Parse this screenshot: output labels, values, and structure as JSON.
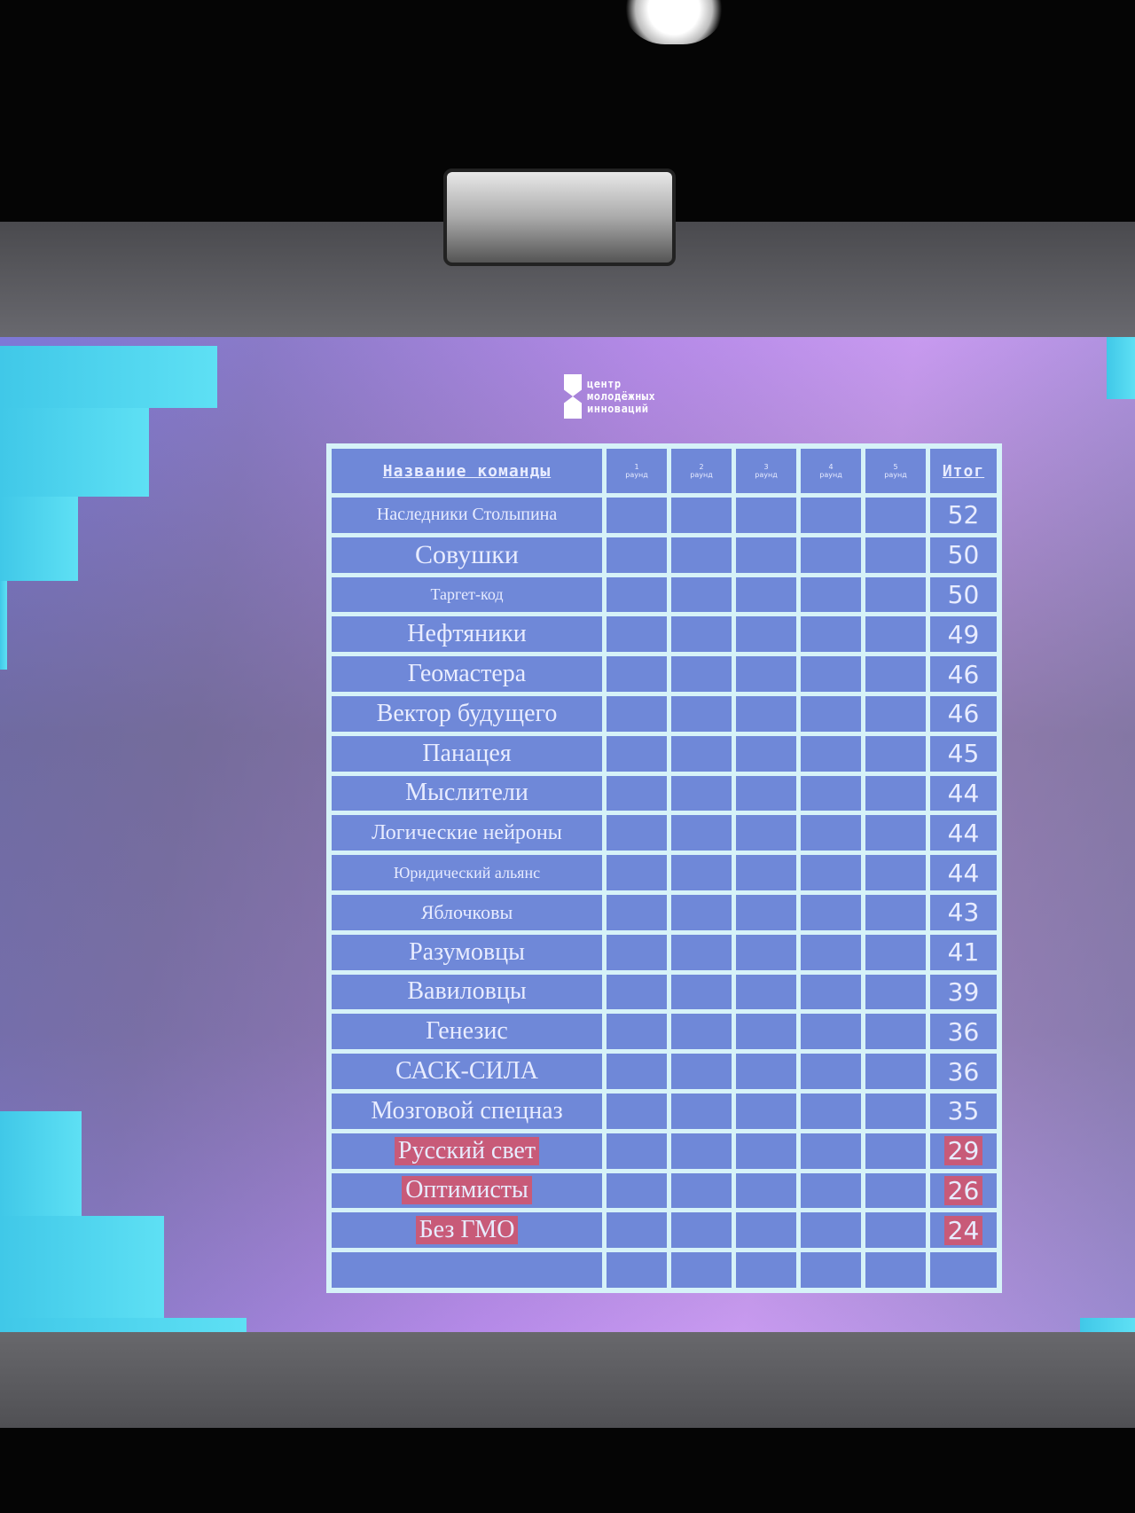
{
  "logo": {
    "lines": [
      "центр",
      "молодёжных",
      "инноваций"
    ]
  },
  "table": {
    "headers": {
      "name": "Название команды",
      "rounds": [
        {
          "n": "1",
          "label": "раунд"
        },
        {
          "n": "2",
          "label": "раунд"
        },
        {
          "n": "3",
          "label": "раунд"
        },
        {
          "n": "4",
          "label": "раунд"
        },
        {
          "n": "5",
          "label": "раунд"
        }
      ],
      "total": "Итог"
    },
    "rows": [
      {
        "team": "Наследники Столыпина",
        "total": "52"
      },
      {
        "team": "Совушки",
        "total": "50"
      },
      {
        "team": "Таргет-код",
        "total": "50"
      },
      {
        "team": "Нефтяники",
        "total": "49"
      },
      {
        "team": "Геомастера",
        "total": "46"
      },
      {
        "team": "Вектор будущего",
        "total": "46"
      },
      {
        "team": "Панацея",
        "total": "45"
      },
      {
        "team": "Мыслители",
        "total": "44"
      },
      {
        "team": "Логические нейроны",
        "total": "44"
      },
      {
        "team": "Юридический альянс",
        "total": "44"
      },
      {
        "team": "Яблочковы",
        "total": "43"
      },
      {
        "team": "Разумовцы",
        "total": "41"
      },
      {
        "team": "Вавиловцы",
        "total": "39"
      },
      {
        "team": "Генезис",
        "total": "36"
      },
      {
        "team": "САСК-СИЛА",
        "total": "36"
      },
      {
        "team": "Мозговой спецназ",
        "total": "35"
      },
      {
        "team": "Русский свет",
        "total": "29",
        "highlight": true
      },
      {
        "team": "Оптимисты",
        "total": "26",
        "highlight": true
      },
      {
        "team": "Без ГМО",
        "total": "24",
        "highlight": true
      },
      {
        "team": "",
        "total": ""
      }
    ]
  },
  "colors": {
    "cell": "#6f88d8",
    "grid": "#d6f2f8",
    "highlight": "#c85a78",
    "accent": "#4fd6ee"
  }
}
